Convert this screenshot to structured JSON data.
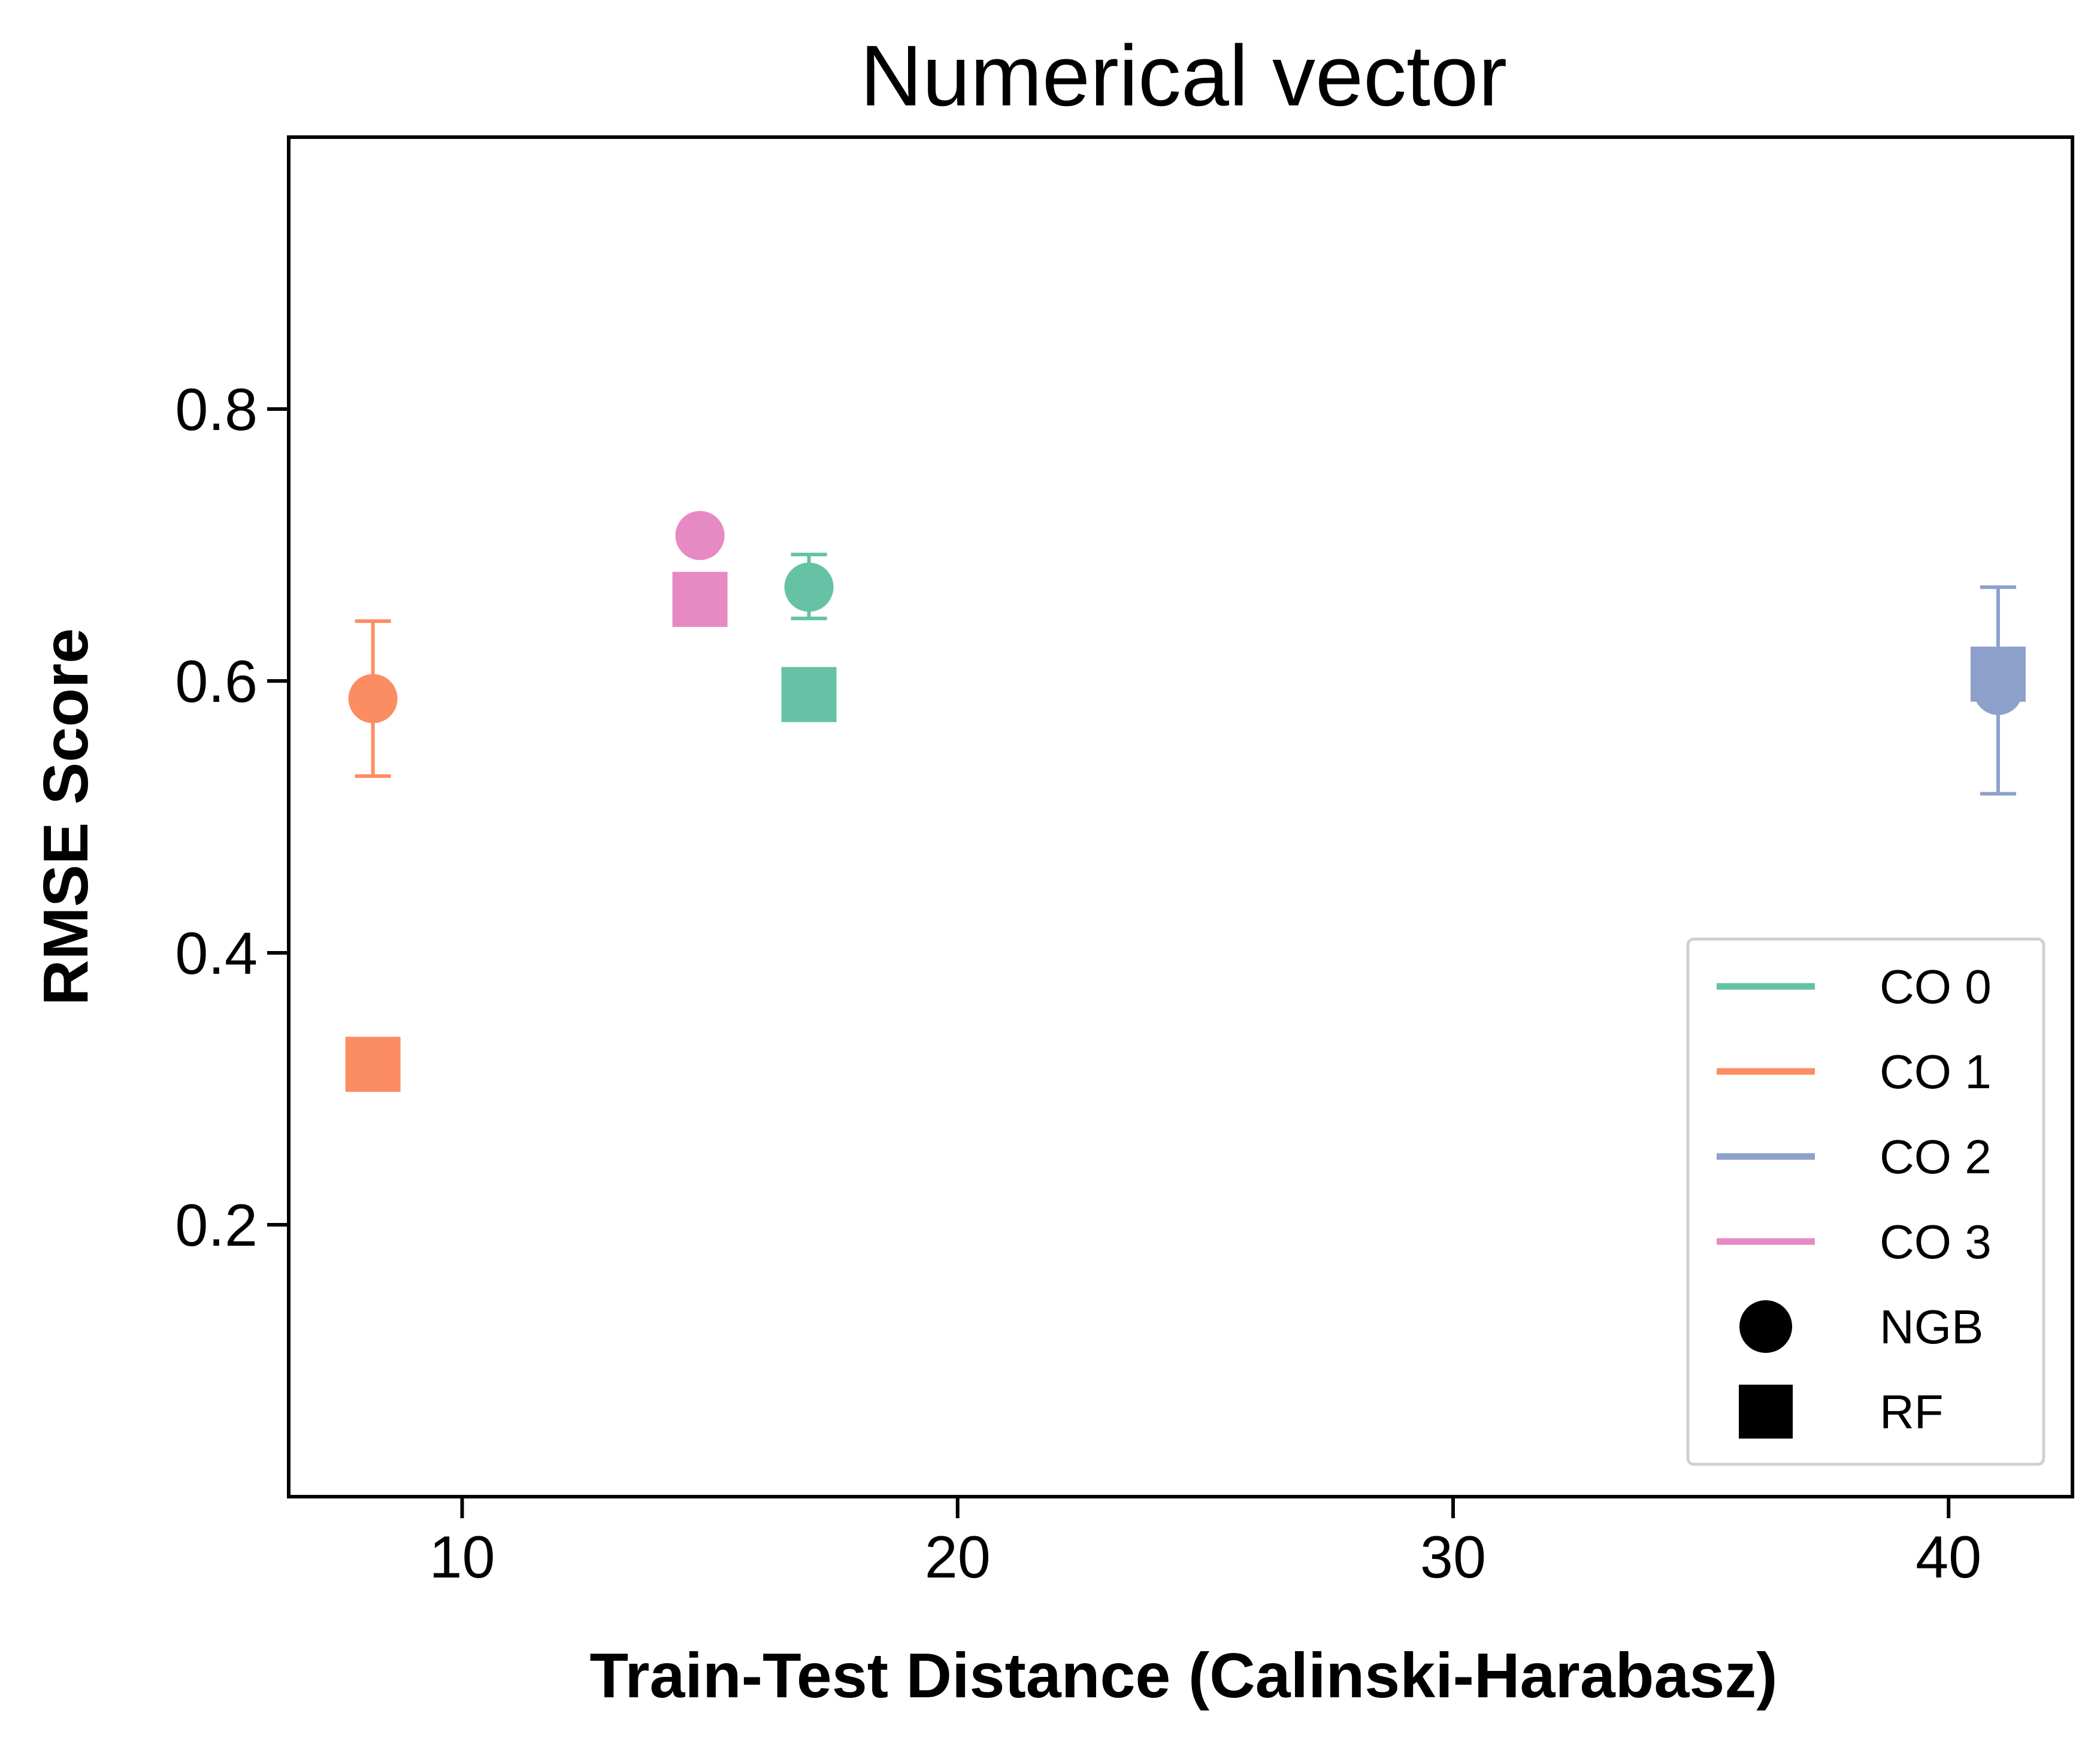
{
  "chart_data": {
    "type": "scatter",
    "title": "Numerical vector",
    "xlabel": "Train-Test Distance (Calinski-Harabasz)",
    "ylabel": "RMSE Score",
    "xlim": [
      6.5,
      42.5
    ],
    "ylim": [
      0.0,
      1.0
    ],
    "x_ticks": [
      10,
      20,
      30,
      40
    ],
    "x_tick_labels": [
      "10",
      "20",
      "30",
      "40"
    ],
    "y_ticks": [
      0.2,
      0.4,
      0.6,
      0.8
    ],
    "y_tick_labels": [
      "0.2",
      "0.4",
      "0.6",
      "0.8"
    ],
    "grid": false,
    "legend_position": "lower-right",
    "series": [
      {
        "name": "CO 0",
        "color": "#66c2a5",
        "x": 17.0,
        "ngb": {
          "y": 0.669,
          "err_low": 0.646,
          "err_high": 0.693
        },
        "rf": {
          "y": 0.59
        }
      },
      {
        "name": "CO 1",
        "color": "#fc8d62",
        "x": 8.2,
        "ngb": {
          "y": 0.587,
          "err_low": 0.53,
          "err_high": 0.644
        },
        "rf": {
          "y": 0.318
        }
      },
      {
        "name": "CO 2",
        "color": "#8da0cb",
        "x": 41.0,
        "ngb": {
          "y": 0.593,
          "err_low": 0.517,
          "err_high": 0.669
        },
        "rf": {
          "y": 0.605
        }
      },
      {
        "name": "CO 3",
        "color": "#e78ac3",
        "x": 14.8,
        "ngb": {
          "y": 0.707
        },
        "rf": {
          "y": 0.66
        }
      }
    ],
    "marker_legend": [
      {
        "label": "NGB",
        "marker": "circle"
      },
      {
        "label": "RF",
        "marker": "square"
      }
    ]
  }
}
